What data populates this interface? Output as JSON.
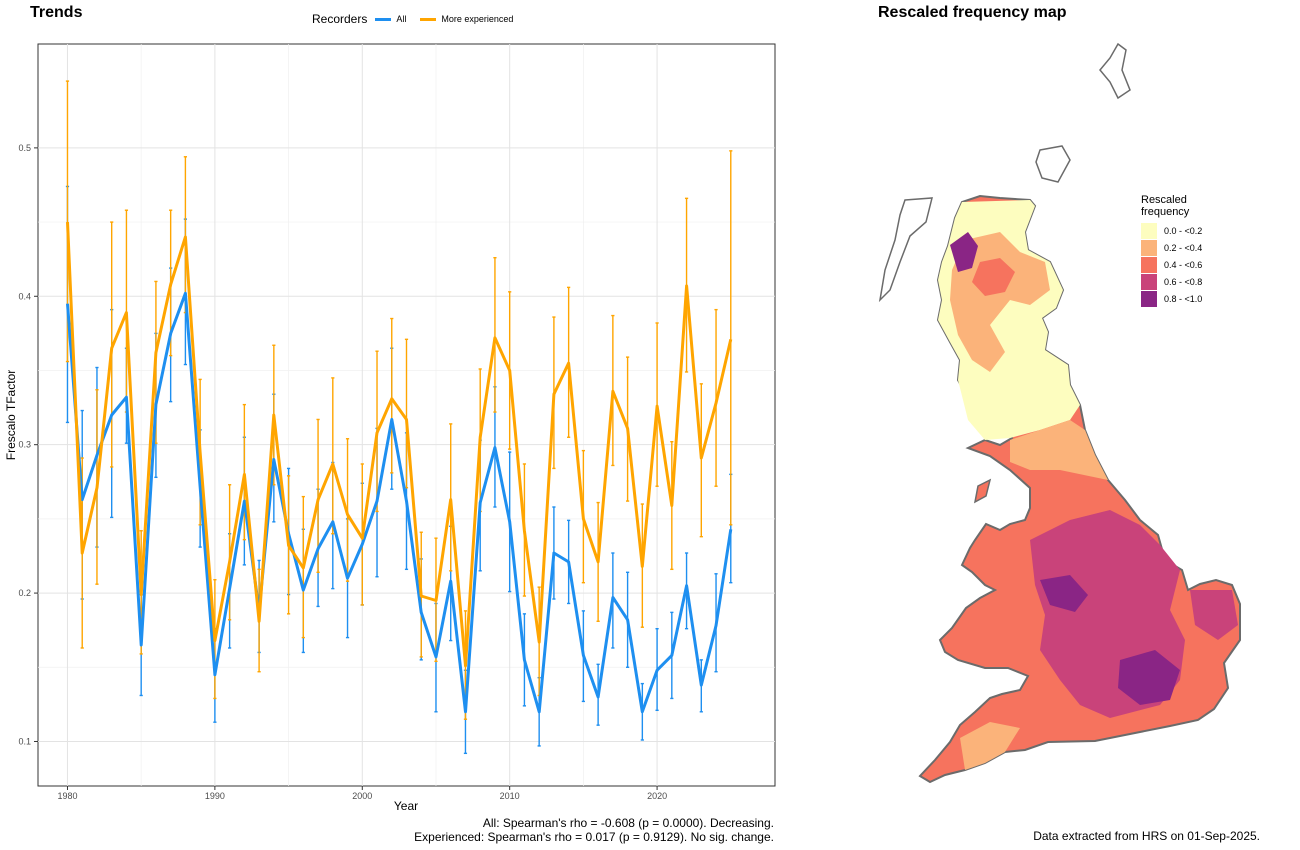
{
  "titles": {
    "trends": "Trends",
    "map": "Rescaled frequency map"
  },
  "legend": {
    "title": "Recorders",
    "items": [
      {
        "label": "All",
        "color": "#1e8ff0"
      },
      {
        "label": "More experienced",
        "color": "#ffa500"
      }
    ]
  },
  "chart_data": {
    "type": "line",
    "xlabel": "Year",
    "ylabel": "Frescalo TFactor",
    "xlim": [
      1978,
      2028
    ],
    "ylim": [
      0.07,
      0.57
    ],
    "xticks": [
      1980,
      1990,
      2000,
      2010,
      2020
    ],
    "yticks": [
      0.1,
      0.2,
      0.3,
      0.4,
      0.5
    ],
    "grid": true,
    "legend_position": "top",
    "error_bars": true,
    "series": [
      {
        "name": "All",
        "color": "#1e8ff0",
        "x": [
          1980,
          1981,
          1982,
          1983,
          1984,
          1985,
          1986,
          1987,
          1988,
          1989,
          1990,
          1991,
          1992,
          1993,
          1994,
          1995,
          1996,
          1997,
          1998,
          1999,
          2000,
          2001,
          2002,
          2003,
          2004,
          2005,
          2006,
          2007,
          2008,
          2009,
          2010,
          2011,
          2012,
          2013,
          2014,
          2015,
          2016,
          2017,
          2018,
          2019,
          2020,
          2021,
          2022,
          2023,
          2024,
          2025
        ],
        "values": [
          0.395,
          0.263,
          0.293,
          0.32,
          0.332,
          0.165,
          0.327,
          0.375,
          0.402,
          0.272,
          0.145,
          0.203,
          0.262,
          0.188,
          0.29,
          0.24,
          0.202,
          0.23,
          0.248,
          0.21,
          0.233,
          0.262,
          0.317,
          0.262,
          0.187,
          0.157,
          0.208,
          0.12,
          0.261,
          0.298,
          0.248,
          0.155,
          0.12,
          0.227,
          0.221,
          0.158,
          0.13,
          0.197,
          0.182,
          0.12,
          0.148,
          0.158,
          0.205,
          0.138,
          0.178,
          0.243
        ],
        "lower": [
          0.315,
          0.196,
          0.231,
          0.251,
          0.301,
          0.131,
          0.278,
          0.329,
          0.354,
          0.231,
          0.113,
          0.163,
          0.219,
          0.16,
          0.248,
          0.199,
          0.16,
          0.191,
          0.203,
          0.17,
          0.192,
          0.211,
          0.27,
          0.216,
          0.155,
          0.12,
          0.168,
          0.092,
          0.215,
          0.258,
          0.201,
          0.124,
          0.097,
          0.196,
          0.193,
          0.127,
          0.111,
          0.163,
          0.15,
          0.101,
          0.121,
          0.129,
          0.176,
          0.12,
          0.147,
          0.207
        ],
        "upper": [
          0.474,
          0.323,
          0.352,
          0.391,
          0.365,
          0.199,
          0.375,
          0.419,
          0.452,
          0.31,
          0.176,
          0.24,
          0.305,
          0.222,
          0.334,
          0.284,
          0.243,
          0.27,
          0.288,
          0.25,
          0.274,
          0.311,
          0.365,
          0.308,
          0.223,
          0.193,
          0.245,
          0.148,
          0.303,
          0.339,
          0.295,
          0.186,
          0.143,
          0.258,
          0.249,
          0.188,
          0.152,
          0.227,
          0.214,
          0.139,
          0.176,
          0.187,
          0.227,
          0.155,
          0.213,
          0.28
        ]
      },
      {
        "name": "More experienced",
        "color": "#ffa500",
        "x": [
          1980,
          1981,
          1982,
          1983,
          1984,
          1985,
          1986,
          1987,
          1988,
          1989,
          1990,
          1991,
          1992,
          1993,
          1994,
          1995,
          1996,
          1997,
          1998,
          1999,
          2000,
          2001,
          2002,
          2003,
          2004,
          2005,
          2006,
          2007,
          2008,
          2009,
          2010,
          2011,
          2012,
          2013,
          2014,
          2015,
          2016,
          2017,
          2018,
          2019,
          2020,
          2021,
          2022,
          2023,
          2024,
          2025
        ],
        "values": [
          0.45,
          0.227,
          0.271,
          0.365,
          0.389,
          0.199,
          0.362,
          0.408,
          0.44,
          0.295,
          0.168,
          0.221,
          0.28,
          0.181,
          0.32,
          0.232,
          0.217,
          0.263,
          0.287,
          0.253,
          0.237,
          0.308,
          0.331,
          0.317,
          0.198,
          0.195,
          0.263,
          0.151,
          0.305,
          0.372,
          0.35,
          0.242,
          0.167,
          0.334,
          0.355,
          0.25,
          0.221,
          0.336,
          0.311,
          0.218,
          0.326,
          0.259,
          0.407,
          0.291,
          0.328,
          0.371
        ],
        "lower": [
          0.356,
          0.163,
          0.206,
          0.285,
          0.322,
          0.159,
          0.301,
          0.36,
          0.389,
          0.246,
          0.129,
          0.182,
          0.236,
          0.147,
          0.273,
          0.186,
          0.17,
          0.214,
          0.24,
          0.208,
          0.192,
          0.255,
          0.281,
          0.271,
          0.157,
          0.154,
          0.215,
          0.115,
          0.255,
          0.322,
          0.297,
          0.198,
          0.131,
          0.284,
          0.305,
          0.207,
          0.181,
          0.286,
          0.262,
          0.177,
          0.272,
          0.216,
          0.349,
          0.238,
          0.272,
          0.246
        ],
        "upper": [
          0.545,
          0.291,
          0.337,
          0.45,
          0.458,
          0.242,
          0.41,
          0.458,
          0.494,
          0.344,
          0.209,
          0.273,
          0.327,
          0.216,
          0.367,
          0.279,
          0.265,
          0.317,
          0.345,
          0.304,
          0.287,
          0.363,
          0.385,
          0.371,
          0.241,
          0.237,
          0.314,
          0.188,
          0.351,
          0.426,
          0.403,
          0.287,
          0.204,
          0.386,
          0.406,
          0.296,
          0.261,
          0.387,
          0.359,
          0.26,
          0.382,
          0.302,
          0.466,
          0.341,
          0.391,
          0.498
        ]
      }
    ]
  },
  "caption": {
    "line1": "All: Spearman's rho = -0.608 (p = 0.0000). Decreasing.",
    "line2": "Experienced: Spearman's rho = 0.017 (p = 0.9129). No sig. change."
  },
  "data_note": "Data extracted from HRS on 01-Sep-2025.",
  "map_legend": {
    "title_line1": "Rescaled",
    "title_line2": "frequency",
    "items": [
      {
        "label": "0.0 - <0.2",
        "color": "#fdfdbf"
      },
      {
        "label": "0.2 - <0.4",
        "color": "#fbb37a"
      },
      {
        "label": "0.4 - <0.6",
        "color": "#f6735e"
      },
      {
        "label": "0.6 - <0.8",
        "color": "#c9437a"
      },
      {
        "label": "0.8 - <1.0",
        "color": "#8a2585"
      }
    ]
  }
}
